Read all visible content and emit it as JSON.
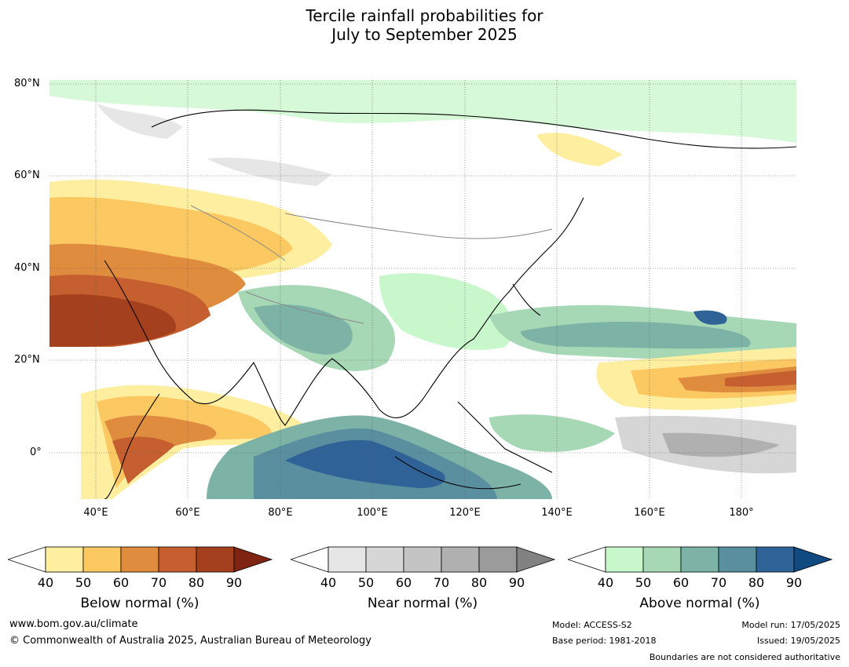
{
  "title_line1": "Tercile rainfall probabilities for",
  "title_line2": "July to September 2025",
  "lat_labels": [
    "80°N",
    "60°N",
    "40°N",
    "20°N",
    "0°"
  ],
  "lon_labels": [
    "40°E",
    "60°E",
    "80°E",
    "100°E",
    "120°E",
    "140°E",
    "160°E",
    "180°"
  ],
  "colorbars": [
    {
      "caption": "Below normal (%)",
      "ticks": [
        "40",
        "50",
        "60",
        "70",
        "80",
        "90"
      ],
      "colors": [
        "#fdeea0",
        "#fbc862",
        "#e08c3f",
        "#c65f30",
        "#a5401f",
        "#7f2412"
      ]
    },
    {
      "caption": "Near normal (%)",
      "ticks": [
        "40",
        "50",
        "60",
        "70",
        "80",
        "90"
      ],
      "colors": [
        "#e6e6e6",
        "#d6d6d6",
        "#c4c4c4",
        "#b0b0b0",
        "#9b9b9b",
        "#828282"
      ]
    },
    {
      "caption": "Above normal (%)",
      "ticks": [
        "40",
        "50",
        "60",
        "70",
        "80",
        "90"
      ],
      "colors": [
        "#c8f7cb",
        "#a6d8b6",
        "#7db3a7",
        "#5a8fa0",
        "#2f6398",
        "#0f4a80"
      ]
    }
  ],
  "footer": {
    "url": "www.bom.gov.au/climate",
    "copyright": "© Commonwealth of Australia 2025, Australian Bureau of Meteorology",
    "model": "Model: ACCESS-S2",
    "base_period": "Base period: 1981-2018",
    "model_run": "Model run: 17/05/2025",
    "issued": "Issued: 19/05/2025",
    "disclaimer": "Boundaries are not considered authoritative"
  }
}
